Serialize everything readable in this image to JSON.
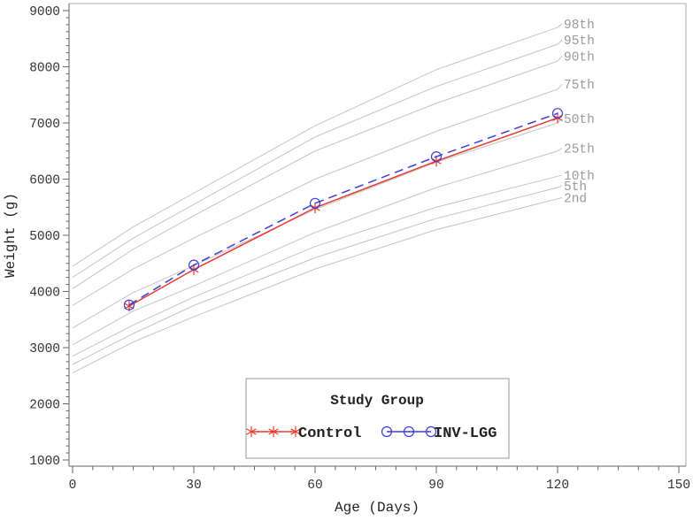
{
  "chart_data": {
    "type": "line",
    "title": "",
    "xlabel": "Age (Days)",
    "ylabel": "Weight (g)",
    "xlim": [
      0,
      150
    ],
    "ylim": [
      1000,
      9000
    ],
    "x_ticks": [
      0,
      30,
      60,
      90,
      120,
      150
    ],
    "y_ticks": [
      1000,
      2000,
      3000,
      4000,
      5000,
      6000,
      7000,
      8000,
      9000
    ],
    "x_minor_divisions": 6,
    "y_minor_divisions": 8,
    "grid": false,
    "colors": {
      "frame": "#aaaaaa",
      "axis": "#666666",
      "tick_text": "#333333"
    },
    "percentiles": {
      "description": "gray reference growth-percentile curves labeled at right end",
      "x_days": [
        0,
        15,
        30,
        60,
        90,
        120
      ],
      "color": "#c4c4c4",
      "label_color": "#9a9a9a",
      "series": [
        {
          "name": "98th",
          "values": [
            4450,
            5150,
            5750,
            6950,
            7950,
            8700
          ],
          "label_y": 8760
        },
        {
          "name": "95th",
          "values": [
            4250,
            4950,
            5550,
            6750,
            7650,
            8400
          ],
          "label_y": 8480
        },
        {
          "name": "90th",
          "values": [
            4050,
            4750,
            5350,
            6500,
            7350,
            8100
          ],
          "label_y": 8190
        },
        {
          "name": "75th",
          "values": [
            3750,
            4400,
            4950,
            6000,
            6850,
            7600
          ],
          "label_y": 7690
        },
        {
          "name": "50th",
          "values": [
            3350,
            3980,
            4460,
            5460,
            6300,
            7000
          ],
          "label_y": 7080
        },
        {
          "name": "25th",
          "values": [
            3050,
            3650,
            4100,
            5050,
            5850,
            6500
          ],
          "label_y": 6550
        },
        {
          "name": "10th",
          "values": [
            2850,
            3400,
            3900,
            4800,
            5500,
            6050
          ],
          "label_y": 6070
        },
        {
          "name": "5th",
          "values": [
            2700,
            3250,
            3750,
            4600,
            5300,
            5850
          ],
          "label_y": 5880
        },
        {
          "name": "2nd",
          "values": [
            2550,
            3100,
            3550,
            4400,
            5100,
            5650
          ],
          "label_y": 5670
        }
      ]
    },
    "study_groups": {
      "x_days": [
        14,
        30,
        60,
        90,
        120
      ],
      "series": [
        {
          "name": "Control",
          "color": "#e63a2e",
          "marker": "star",
          "line_style": "solid",
          "values": [
            3740,
            4390,
            5490,
            6320,
            7090
          ]
        },
        {
          "name": "INV-LGG",
          "color": "#3d3dd8",
          "marker": "circle",
          "line_style": "dashed",
          "values": [
            3760,
            4470,
            5570,
            6400,
            7170
          ]
        }
      ]
    },
    "legend": {
      "title": "Study Group",
      "position": "bottom-center",
      "entries": [
        "Control",
        "INV-LGG"
      ]
    }
  }
}
